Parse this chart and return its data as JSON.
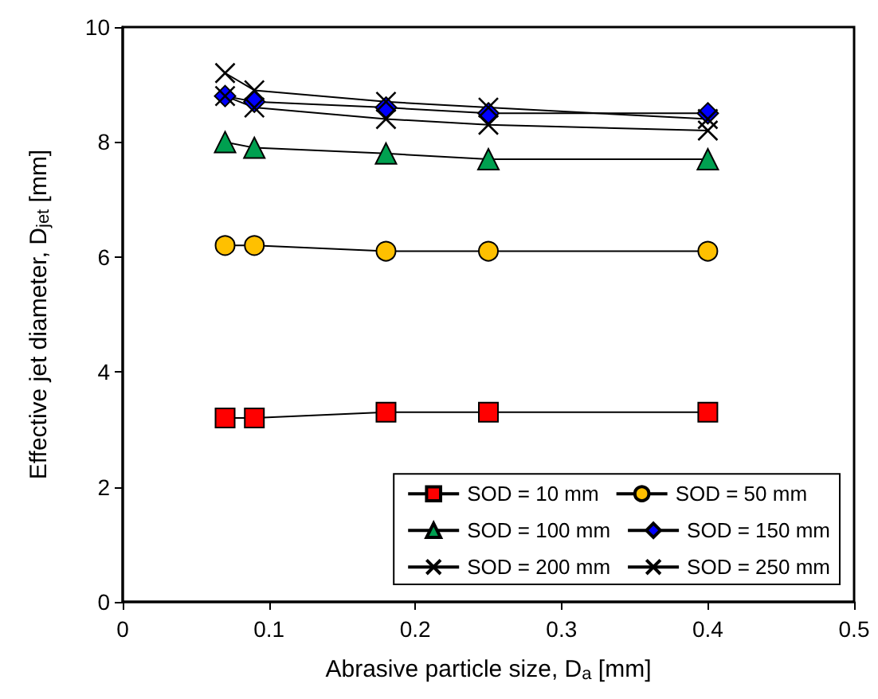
{
  "chart_data": {
    "type": "line",
    "xlabel": "Abrasive particle size, D$_{a}$ [mm]",
    "ylabel": "Effective jet diameter, D$_{jet}$ [mm]",
    "x": [
      0.07,
      0.09,
      0.18,
      0.25,
      0.4
    ],
    "xlim": [
      0,
      0.5
    ],
    "xticks": [
      0,
      0.1,
      0.2,
      0.3,
      0.4,
      0.5
    ],
    "ylim": [
      0,
      10
    ],
    "yticks": [
      0,
      2,
      4,
      6,
      8,
      10
    ],
    "grid": false,
    "legend": "bottom right",
    "line_style": "solid",
    "series": [
      {
        "name": "SOD = 10 mm",
        "color": "#ff0000",
        "marker": "square",
        "values": [
          3.2,
          3.2,
          3.3,
          3.3,
          3.3
        ]
      },
      {
        "name": "SOD = 50 mm",
        "color": "#ffc000",
        "marker": "circle",
        "values": [
          6.2,
          6.2,
          6.1,
          6.1,
          6.1
        ]
      },
      {
        "name": "SOD = 100 mm",
        "color": "#00a050",
        "marker": "triangle",
        "values": [
          8.0,
          7.9,
          7.8,
          7.7,
          7.7
        ]
      },
      {
        "name": "SOD = 150 mm",
        "color": "#0000ff",
        "marker": "diamond",
        "values": [
          8.8,
          8.7,
          8.6,
          8.5,
          8.5
        ]
      },
      {
        "name": "SOD = 200 mm",
        "color": "#000000",
        "marker": "cross",
        "values": [
          9.2,
          8.9,
          8.7,
          8.6,
          8.4
        ]
      },
      {
        "name": "SOD = 250 mm",
        "color": "#000000",
        "marker": "cross",
        "values": [
          8.8,
          8.6,
          8.4,
          8.3,
          8.2
        ]
      }
    ]
  }
}
